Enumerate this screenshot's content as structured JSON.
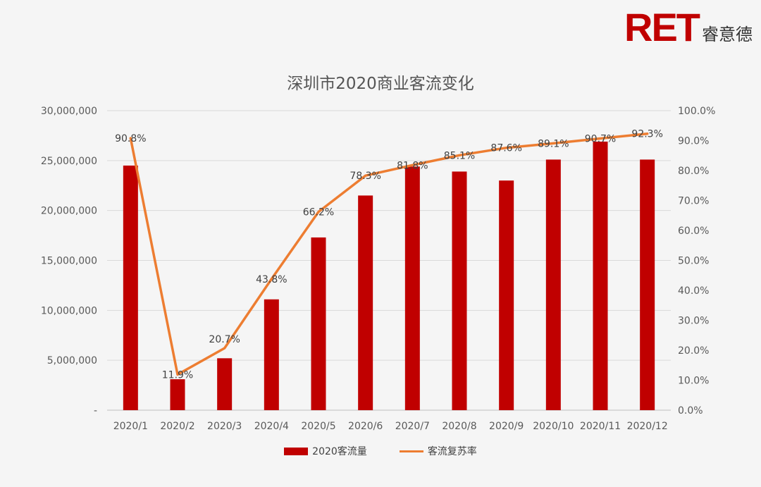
{
  "brand": {
    "logo_text": "RET",
    "logo_cn": "睿意德"
  },
  "chart_data": {
    "type": "bar+line",
    "title": "深圳市2020商业客流变化",
    "categories": [
      "2020/1",
      "2020/2",
      "2020/3",
      "2020/4",
      "2020/5",
      "2020/6",
      "2020/7",
      "2020/8",
      "2020/9",
      "2020/10",
      "2020/11",
      "2020/12"
    ],
    "series": [
      {
        "name": "2020客流量",
        "type": "bar",
        "axis": "left",
        "color": "#c00000",
        "values": [
          24500000,
          3100000,
          5200000,
          11100000,
          17300000,
          21500000,
          24400000,
          23900000,
          23000000,
          25100000,
          26900000,
          25100000
        ]
      },
      {
        "name": "客流复苏率",
        "type": "line",
        "axis": "right",
        "color": "#ed7d31",
        "values": [
          90.8,
          11.9,
          20.7,
          43.8,
          66.2,
          78.3,
          81.8,
          85.1,
          87.6,
          89.1,
          90.7,
          92.3
        ],
        "labels": [
          "90.8%",
          "11.9%",
          "20.7%",
          "43.8%",
          "66.2%",
          "78.3%",
          "81.8%",
          "85.1%",
          "87.6%",
          "89.1%",
          "90.7%",
          "92.3%"
        ]
      }
    ],
    "y_left": {
      "min": 0,
      "max": 30000000,
      "ticks": [
        "-",
        "5,000,000",
        "10,000,000",
        "15,000,000",
        "20,000,000",
        "25,000,000",
        "30,000,000"
      ]
    },
    "y_right": {
      "min": 0,
      "max": 100,
      "ticks": [
        "0.0%",
        "10.0%",
        "20.0%",
        "30.0%",
        "40.0%",
        "50.0%",
        "60.0%",
        "70.0%",
        "80.0%",
        "90.0%",
        "100.0%"
      ]
    },
    "grid": true,
    "legend_position": "bottom"
  }
}
